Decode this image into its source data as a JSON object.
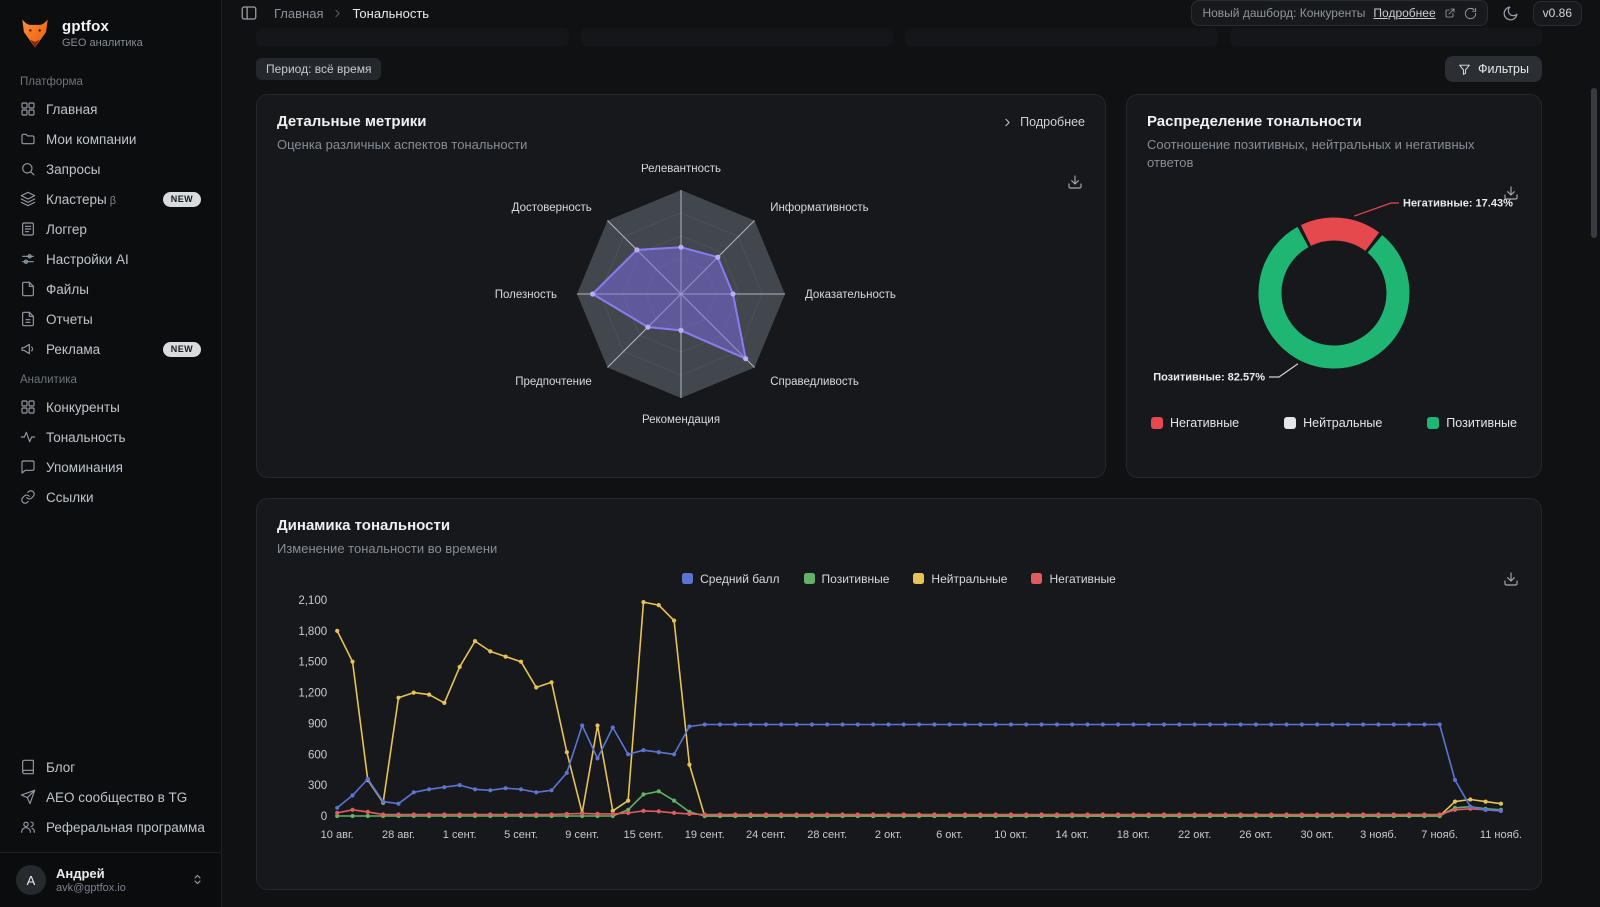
{
  "sidebar": {
    "brand": {
      "name": "gptfox",
      "subtitle": "GEO аналитика"
    },
    "sections": [
      {
        "label": "Платформа",
        "items": [
          {
            "key": "home",
            "icon": "grid",
            "label": "Главная"
          },
          {
            "key": "companies",
            "icon": "folder",
            "label": "Мои компании"
          },
          {
            "key": "queries",
            "icon": "search",
            "label": "Запросы"
          },
          {
            "key": "clusters",
            "icon": "layers",
            "label": "Кластеры",
            "beta": "β",
            "badge": "NEW"
          },
          {
            "key": "logger",
            "icon": "logger",
            "label": "Логгер"
          },
          {
            "key": "ai-settings",
            "icon": "settings",
            "label": "Настройки AI"
          },
          {
            "key": "files",
            "icon": "file",
            "label": "Файлы"
          },
          {
            "key": "reports",
            "icon": "report",
            "label": "Отчеты"
          },
          {
            "key": "ads",
            "icon": "megaphone",
            "label": "Реклама",
            "badge": "NEW"
          }
        ]
      },
      {
        "label": "Аналитика",
        "items": [
          {
            "key": "competitors",
            "icon": "grid",
            "label": "Конкуренты"
          },
          {
            "key": "sentiment",
            "icon": "pulse",
            "label": "Тональность"
          },
          {
            "key": "mentions",
            "icon": "chat",
            "label": "Упоминания"
          },
          {
            "key": "links",
            "icon": "link",
            "label": "Ссылки"
          }
        ]
      }
    ],
    "footer_items": [
      {
        "key": "blog",
        "icon": "book",
        "label": "Блог"
      },
      {
        "key": "tg-community",
        "icon": "send",
        "label": "AEO сообщество в TG"
      },
      {
        "key": "referral",
        "icon": "users",
        "label": "Реферальная программа"
      }
    ],
    "user": {
      "initial": "А",
      "name": "Андрей",
      "email": "avk@gptfox.io"
    }
  },
  "topbar": {
    "breadcrumb": [
      "Главная",
      "Тональность"
    ],
    "notice": {
      "text": "Новый дашборд: Конкуренты",
      "link": "Подробнее"
    },
    "version": "v0.86"
  },
  "toolbar": {
    "period_chip": "Период: всё время",
    "filters_label": "Фильтры"
  },
  "cards": {
    "radar": {
      "title": "Детальные метрики",
      "subtitle": "Оценка различных аспектов тональности",
      "more_label": "Подробнее"
    },
    "donut": {
      "title": "Распределение тональности",
      "subtitle": "Соотношение позитивных, нейтральных и негативных ответов"
    },
    "line": {
      "title": "Динамика тональности",
      "subtitle": "Изменение тональности во времени"
    }
  },
  "chart_data": [
    {
      "type": "radar",
      "title": "Детальные метрики",
      "axes": [
        "Релевантность",
        "Информативность",
        "Доказательность",
        "Справедливость",
        "Рекомендация",
        "Предпочтение",
        "Полезность",
        "Достоверность"
      ],
      "values": [
        4.5,
        5,
        5,
        8.8,
        3.5,
        4.5,
        8.5,
        6
      ],
      "max": 10,
      "color": "#8b7bf0",
      "fill": "rgba(124,108,230,0.5)"
    },
    {
      "type": "pie",
      "title": "Распределение тональности",
      "slices": [
        {
          "label": "Негативные",
          "value": 17.43,
          "color": "#e5484d"
        },
        {
          "label": "Нейтральные",
          "value": 0,
          "color": "#e4e7ea"
        },
        {
          "label": "Позитивные",
          "value": 82.57,
          "color": "#1fb573"
        }
      ],
      "callouts": [
        "Негативные: 17.43%",
        "Позитивные: 82.57%"
      ],
      "legend_position": "bottom"
    },
    {
      "type": "line",
      "title": "Динамика тональности",
      "x_tick_labels": [
        "10 авг.",
        "28 авг.",
        "1 сент.",
        "5 сент.",
        "9 сент.",
        "15 сент.",
        "19 сент.",
        "24 сент.",
        "28 сент.",
        "2 окт.",
        "6 окт.",
        "10 окт.",
        "14 окт.",
        "18 окт.",
        "22 окт.",
        "26 окт.",
        "30 окт.",
        "3 нояб.",
        "7 нояб.",
        "11 нояб."
      ],
      "tick_every": 4,
      "ylim": [
        0,
        2100
      ],
      "y_ticks": [
        0,
        300,
        600,
        900,
        1200,
        1500,
        1800,
        2100
      ],
      "grid": false,
      "legend_position": "top",
      "series": [
        {
          "name": "Средний балл",
          "color": "#5b74cf",
          "values": [
            80,
            200,
            360,
            140,
            120,
            230,
            260,
            280,
            300,
            260,
            250,
            270,
            260,
            230,
            250,
            420,
            880,
            560,
            860,
            600,
            640,
            620,
            600,
            870,
            890,
            890,
            890,
            890,
            890,
            890,
            890,
            890,
            890,
            890,
            890,
            890,
            890,
            890,
            890,
            890,
            890,
            890,
            890,
            890,
            890,
            890,
            890,
            890,
            890,
            890,
            890,
            890,
            890,
            890,
            890,
            890,
            890,
            890,
            890,
            890,
            890,
            890,
            890,
            890,
            890,
            890,
            890,
            890,
            890,
            890,
            890,
            890,
            890,
            350,
            90,
            60,
            50
          ]
        },
        {
          "name": "Позитивные",
          "color": "#63b168",
          "values": [
            0,
            0,
            0,
            0,
            0,
            0,
            0,
            0,
            0,
            0,
            0,
            0,
            0,
            0,
            0,
            0,
            0,
            0,
            0,
            60,
            210,
            240,
            150,
            40,
            0,
            0,
            0,
            0,
            0,
            0,
            0,
            0,
            0,
            0,
            0,
            0,
            0,
            0,
            0,
            0,
            0,
            0,
            0,
            0,
            0,
            0,
            0,
            0,
            0,
            0,
            0,
            0,
            0,
            0,
            0,
            0,
            0,
            0,
            0,
            0,
            0,
            0,
            0,
            0,
            0,
            0,
            0,
            0,
            0,
            0,
            0,
            0,
            0,
            80,
            90,
            70,
            60
          ]
        },
        {
          "name": "Нейтральные",
          "color": "#e7c257",
          "values": [
            1800,
            1500,
            350,
            130,
            1150,
            1200,
            1180,
            1100,
            1450,
            1700,
            1600,
            1550,
            1500,
            1250,
            1300,
            620,
            30,
            880,
            50,
            150,
            2080,
            2050,
            1900,
            500,
            0,
            0,
            0,
            0,
            0,
            0,
            0,
            0,
            0,
            0,
            0,
            0,
            0,
            0,
            0,
            0,
            0,
            0,
            0,
            0,
            0,
            0,
            0,
            0,
            0,
            0,
            0,
            0,
            0,
            0,
            0,
            0,
            0,
            0,
            0,
            0,
            0,
            0,
            0,
            0,
            0,
            0,
            0,
            0,
            0,
            0,
            0,
            0,
            0,
            140,
            160,
            140,
            120
          ]
        },
        {
          "name": "Негативные",
          "color": "#e25c5f",
          "values": [
            30,
            60,
            40,
            15,
            15,
            15,
            15,
            15,
            15,
            15,
            15,
            15,
            15,
            15,
            15,
            20,
            25,
            20,
            20,
            30,
            50,
            45,
            30,
            20,
            15,
            15,
            15,
            15,
            15,
            15,
            15,
            15,
            15,
            15,
            15,
            15,
            15,
            15,
            15,
            15,
            15,
            15,
            15,
            15,
            15,
            15,
            15,
            15,
            15,
            15,
            15,
            15,
            15,
            15,
            15,
            15,
            15,
            15,
            15,
            15,
            15,
            15,
            15,
            15,
            15,
            15,
            15,
            15,
            15,
            15,
            15,
            15,
            15,
            60,
            70,
            60,
            50
          ]
        }
      ]
    }
  ]
}
